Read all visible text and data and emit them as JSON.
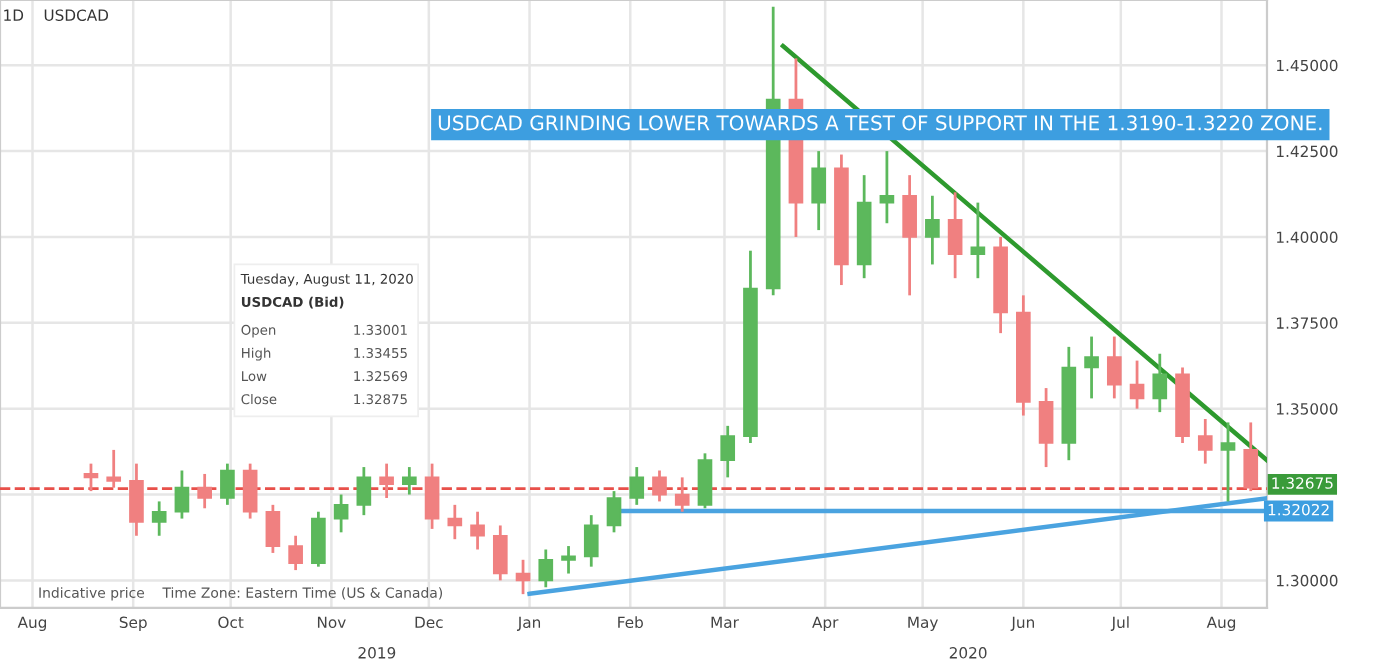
{
  "chart_data": {
    "type": "candlestick",
    "title": "USDCAD GRINDING LOWER TOWARDS A TEST OF SUPPORT IN THE 1.3190-1.3220 ZONE.",
    "subtitle": "1D    USDCAD",
    "x": [
      "2019-08-19",
      "2019-08-26",
      "2019-09-02",
      "2019-09-09",
      "2019-09-16",
      "2019-09-23",
      "2019-09-30",
      "2019-10-07",
      "2019-10-14",
      "2019-10-21",
      "2019-10-28",
      "2019-11-04",
      "2019-11-11",
      "2019-11-18",
      "2019-11-25",
      "2019-12-02",
      "2019-12-09",
      "2019-12-16",
      "2019-12-23",
      "2019-12-30",
      "2020-01-06",
      "2020-01-13",
      "2020-01-20",
      "2020-01-27",
      "2020-02-03",
      "2020-02-10",
      "2020-02-17",
      "2020-02-24",
      "2020-03-02",
      "2020-03-09",
      "2020-03-16",
      "2020-03-23",
      "2020-03-30",
      "2020-04-06",
      "2020-04-13",
      "2020-04-20",
      "2020-04-27",
      "2020-05-04",
      "2020-05-11",
      "2020-05-18",
      "2020-05-25",
      "2020-06-01",
      "2020-06-08",
      "2020-06-15",
      "2020-06-22",
      "2020-06-29",
      "2020-07-06",
      "2020-07-13",
      "2020-07-20",
      "2020-07-27",
      "2020-08-03",
      "2020-08-10"
    ],
    "ohlc": [
      [
        1.331,
        1.334,
        1.326,
        1.33
      ],
      [
        1.33,
        1.338,
        1.327,
        1.329
      ],
      [
        1.329,
        1.334,
        1.313,
        1.317
      ],
      [
        1.317,
        1.323,
        1.313,
        1.32
      ],
      [
        1.32,
        1.332,
        1.318,
        1.327
      ],
      [
        1.327,
        1.331,
        1.321,
        1.324
      ],
      [
        1.324,
        1.334,
        1.322,
        1.332
      ],
      [
        1.332,
        1.334,
        1.318,
        1.32
      ],
      [
        1.32,
        1.322,
        1.308,
        1.31
      ],
      [
        1.31,
        1.313,
        1.303,
        1.305
      ],
      [
        1.305,
        1.32,
        1.304,
        1.318
      ],
      [
        1.318,
        1.325,
        1.314,
        1.322
      ],
      [
        1.322,
        1.333,
        1.319,
        1.33
      ],
      [
        1.33,
        1.334,
        1.324,
        1.328
      ],
      [
        1.328,
        1.333,
        1.325,
        1.33
      ],
      [
        1.33,
        1.334,
        1.315,
        1.318
      ],
      [
        1.318,
        1.322,
        1.312,
        1.316
      ],
      [
        1.316,
        1.32,
        1.309,
        1.313
      ],
      [
        1.313,
        1.316,
        1.3,
        1.302
      ],
      [
        1.302,
        1.306,
        1.296,
        1.3
      ],
      [
        1.3,
        1.309,
        1.298,
        1.306
      ],
      [
        1.306,
        1.31,
        1.302,
        1.307
      ],
      [
        1.307,
        1.319,
        1.304,
        1.316
      ],
      [
        1.316,
        1.326,
        1.314,
        1.324
      ],
      [
        1.324,
        1.333,
        1.322,
        1.33
      ],
      [
        1.33,
        1.332,
        1.323,
        1.325
      ],
      [
        1.325,
        1.33,
        1.32,
        1.322
      ],
      [
        1.322,
        1.337,
        1.321,
        1.335
      ],
      [
        1.335,
        1.345,
        1.33,
        1.342
      ],
      [
        1.342,
        1.396,
        1.34,
        1.385
      ],
      [
        1.385,
        1.467,
        1.383,
        1.44
      ],
      [
        1.44,
        1.452,
        1.4,
        1.41
      ],
      [
        1.41,
        1.425,
        1.402,
        1.42
      ],
      [
        1.42,
        1.424,
        1.386,
        1.392
      ],
      [
        1.392,
        1.418,
        1.388,
        1.41
      ],
      [
        1.41,
        1.425,
        1.404,
        1.412
      ],
      [
        1.412,
        1.418,
        1.383,
        1.4
      ],
      [
        1.4,
        1.412,
        1.392,
        1.405
      ],
      [
        1.405,
        1.413,
        1.388,
        1.395
      ],
      [
        1.395,
        1.41,
        1.388,
        1.397
      ],
      [
        1.397,
        1.4,
        1.372,
        1.378
      ],
      [
        1.378,
        1.383,
        1.348,
        1.352
      ],
      [
        1.352,
        1.356,
        1.333,
        1.34
      ],
      [
        1.34,
        1.368,
        1.335,
        1.362
      ],
      [
        1.362,
        1.371,
        1.353,
        1.365
      ],
      [
        1.365,
        1.371,
        1.353,
        1.357
      ],
      [
        1.357,
        1.364,
        1.35,
        1.353
      ],
      [
        1.353,
        1.366,
        1.349,
        1.36
      ],
      [
        1.36,
        1.362,
        1.34,
        1.342
      ],
      [
        1.342,
        1.347,
        1.334,
        1.338
      ],
      [
        1.338,
        1.346,
        1.323,
        1.34
      ],
      [
        1.338,
        1.346,
        1.326,
        1.327
      ]
    ],
    "colors": [
      "#f08080",
      "#f08080",
      "#f08080",
      "#5cb85c",
      "#5cb85c",
      "#f08080",
      "#5cb85c",
      "#f08080",
      "#f08080",
      "#f08080",
      "#5cb85c",
      "#5cb85c",
      "#5cb85c",
      "#f08080",
      "#5cb85c",
      "#f08080",
      "#f08080",
      "#f08080",
      "#f08080",
      "#f08080",
      "#5cb85c",
      "#5cb85c",
      "#5cb85c",
      "#5cb85c",
      "#5cb85c",
      "#f08080",
      "#f08080",
      "#5cb85c",
      "#5cb85c",
      "#5cb85c",
      "#5cb85c",
      "#f08080",
      "#5cb85c",
      "#f08080",
      "#5cb85c",
      "#5cb85c",
      "#f08080",
      "#5cb85c",
      "#f08080",
      "#5cb85c",
      "#f08080",
      "#f08080",
      "#f08080",
      "#5cb85c",
      "#5cb85c",
      "#f08080",
      "#f08080",
      "#5cb85c",
      "#f08080",
      "#f08080",
      "#5cb85c",
      "#f08080"
    ],
    "series": [
      {
        "type": "line",
        "color": "#2e9a2e",
        "x": [
          "2020-03-19",
          "2020-08-15"
        ],
        "values": [
          1.4556,
          1.335
        ]
      },
      {
        "type": "line",
        "color": "#4aa3e0",
        "x": [
          "2020-01-01",
          "2020-08-15"
        ],
        "values": [
          1.2961,
          1.3239
        ]
      },
      {
        "type": "line",
        "color": "#4aa3e0",
        "x": [
          "2020-01-28",
          "2020-08-15"
        ],
        "values": [
          1.3202,
          1.3202
        ]
      }
    ],
    "ref_lines": [
      {
        "axis": "y",
        "value": 1.32675,
        "label": "1.32675",
        "color": "#e8504a",
        "line_style": "dashed"
      }
    ],
    "xlim": [
      "2019-07-22",
      "2020-08-15"
    ],
    "xticks": [
      {
        "value": "2019-08-01",
        "label": "Aug"
      },
      {
        "value": "2019-09-01",
        "label": "Sep"
      },
      {
        "value": "2019-10-01",
        "label": "Oct"
      },
      {
        "value": "2019-11-01",
        "label": "Nov"
      },
      {
        "value": "2019-12-01",
        "label": "Dec"
      },
      {
        "value": "2020-01-01",
        "label": "Jan"
      },
      {
        "value": "2020-02-01",
        "label": "Feb"
      },
      {
        "value": "2020-03-01",
        "label": "Mar"
      },
      {
        "value": "2020-04-01",
        "label": "Apr"
      },
      {
        "value": "2020-05-01",
        "label": "May"
      },
      {
        "value": "2020-06-01",
        "label": "Jun"
      },
      {
        "value": "2020-07-01",
        "label": "Jul"
      },
      {
        "value": "2020-08-01",
        "label": "Aug"
      }
    ],
    "ylim": [
      1.292,
      1.469
    ],
    "yticks": [
      {
        "value": 1.3,
        "label": "1.30000"
      },
      {
        "value": 1.325,
        "label": null
      },
      {
        "value": 1.35,
        "label": "1.35000"
      },
      {
        "value": 1.375,
        "label": "1.37500"
      },
      {
        "value": 1.4,
        "label": "1.40000"
      },
      {
        "value": 1.425,
        "label": "1.42500"
      },
      {
        "value": 1.45,
        "label": "1.45000"
      }
    ],
    "grid": true,
    "annotations": [
      "Tuesday, August 11, 2020",
      "USDCAD (Bid)",
      "Open 1.33001",
      "High 1.33455",
      "Low 1.32569",
      "Close 1.32875",
      "Indicative price    Time Zone: Eastern Time (US & Canada)",
      {
        "text": "1.32022",
        "x": "2020-08-15",
        "y": 1.3202
      },
      "2019",
      "2020"
    ]
  }
}
